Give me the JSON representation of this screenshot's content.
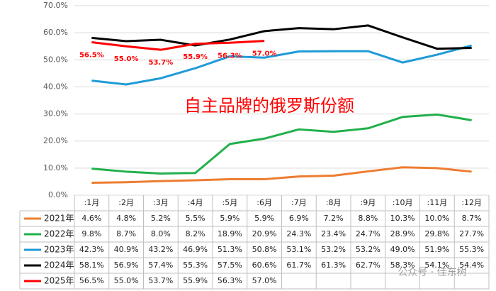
{
  "chart_data": {
    "type": "line",
    "annotation": "自主品牌的俄罗斯份额",
    "watermark": "公众号 · 佳东树",
    "categories": [
      ":1月",
      ":2月",
      ":3月",
      ":4月",
      ":5月",
      ":6月",
      ":7月",
      ":8月",
      ":9月",
      ":10月",
      ":11月",
      ":12月"
    ],
    "series": [
      {
        "name": "2021年",
        "color": "#ed7d31",
        "values": [
          4.6,
          4.8,
          5.2,
          5.5,
          5.9,
          5.9,
          6.9,
          7.2,
          8.8,
          10.3,
          10.0,
          8.7
        ],
        "value_labels": [
          "4.6%",
          "4.8%",
          "5.2%",
          "5.5%",
          "5.9%",
          "5.9%",
          "6.9%",
          "7.2%",
          "8.8%",
          "10.3%",
          "10.0%",
          "8.7%"
        ]
      },
      {
        "name": "2022年",
        "color": "#21b04b",
        "values": [
          9.8,
          8.7,
          8.0,
          8.2,
          18.9,
          20.9,
          24.3,
          23.4,
          24.7,
          28.9,
          29.8,
          27.7
        ],
        "value_labels": [
          "9.8%",
          "8.7%",
          "8.0%",
          "8.2%",
          "18.9%",
          "20.9%",
          "24.3%",
          "23.4%",
          "24.7%",
          "28.9%",
          "29.8%",
          "27.7%"
        ]
      },
      {
        "name": "2023年",
        "color": "#1f9bd7",
        "values": [
          42.3,
          40.9,
          43.2,
          46.9,
          51.3,
          50.8,
          53.1,
          53.2,
          53.2,
          49.0,
          51.9,
          55.3
        ],
        "value_labels": [
          "42.3%",
          "40.9%",
          "43.2%",
          "46.9%",
          "51.3%",
          "50.8%",
          "53.1%",
          "53.2%",
          "53.2%",
          "49.0%",
          "51.9%",
          "55.3%"
        ]
      },
      {
        "name": "2024年",
        "color": "#000000",
        "values": [
          58.1,
          56.9,
          57.4,
          55.3,
          57.5,
          60.6,
          61.7,
          61.3,
          62.7,
          58.3,
          54.1,
          54.4
        ],
        "value_labels": [
          "58.1%",
          "56.9%",
          "57.4%",
          "55.3%",
          "57.5%",
          "60.6%",
          "61.7%",
          "61.3%",
          "62.7%",
          "58.3%",
          "54.1%",
          "54.4%"
        ]
      },
      {
        "name": "2025年",
        "color": "#ff0000",
        "values": [
          56.5,
          55.0,
          53.7,
          55.9,
          56.3,
          57.0,
          null,
          null,
          null,
          null,
          null,
          null
        ],
        "value_labels": [
          "56.5%",
          "55.0%",
          "53.7%",
          "55.9%",
          "56.3%",
          "57.0%",
          null,
          null,
          null,
          null,
          null,
          null
        ]
      }
    ],
    "ylim": [
      0,
      70
    ],
    "yticks": [
      {
        "value": 0,
        "label": "0.0%"
      },
      {
        "value": 10,
        "label": "10.0%"
      },
      {
        "value": 20,
        "label": "20.0%"
      },
      {
        "value": 30,
        "label": "30.0%"
      },
      {
        "value": 40,
        "label": "40.0%"
      },
      {
        "value": 50,
        "label": "50.0%"
      },
      {
        "value": 60,
        "label": "60.0%"
      },
      {
        "value": 70,
        "label": "70.0%"
      }
    ],
    "grid": true,
    "labeled_series": 4
  }
}
